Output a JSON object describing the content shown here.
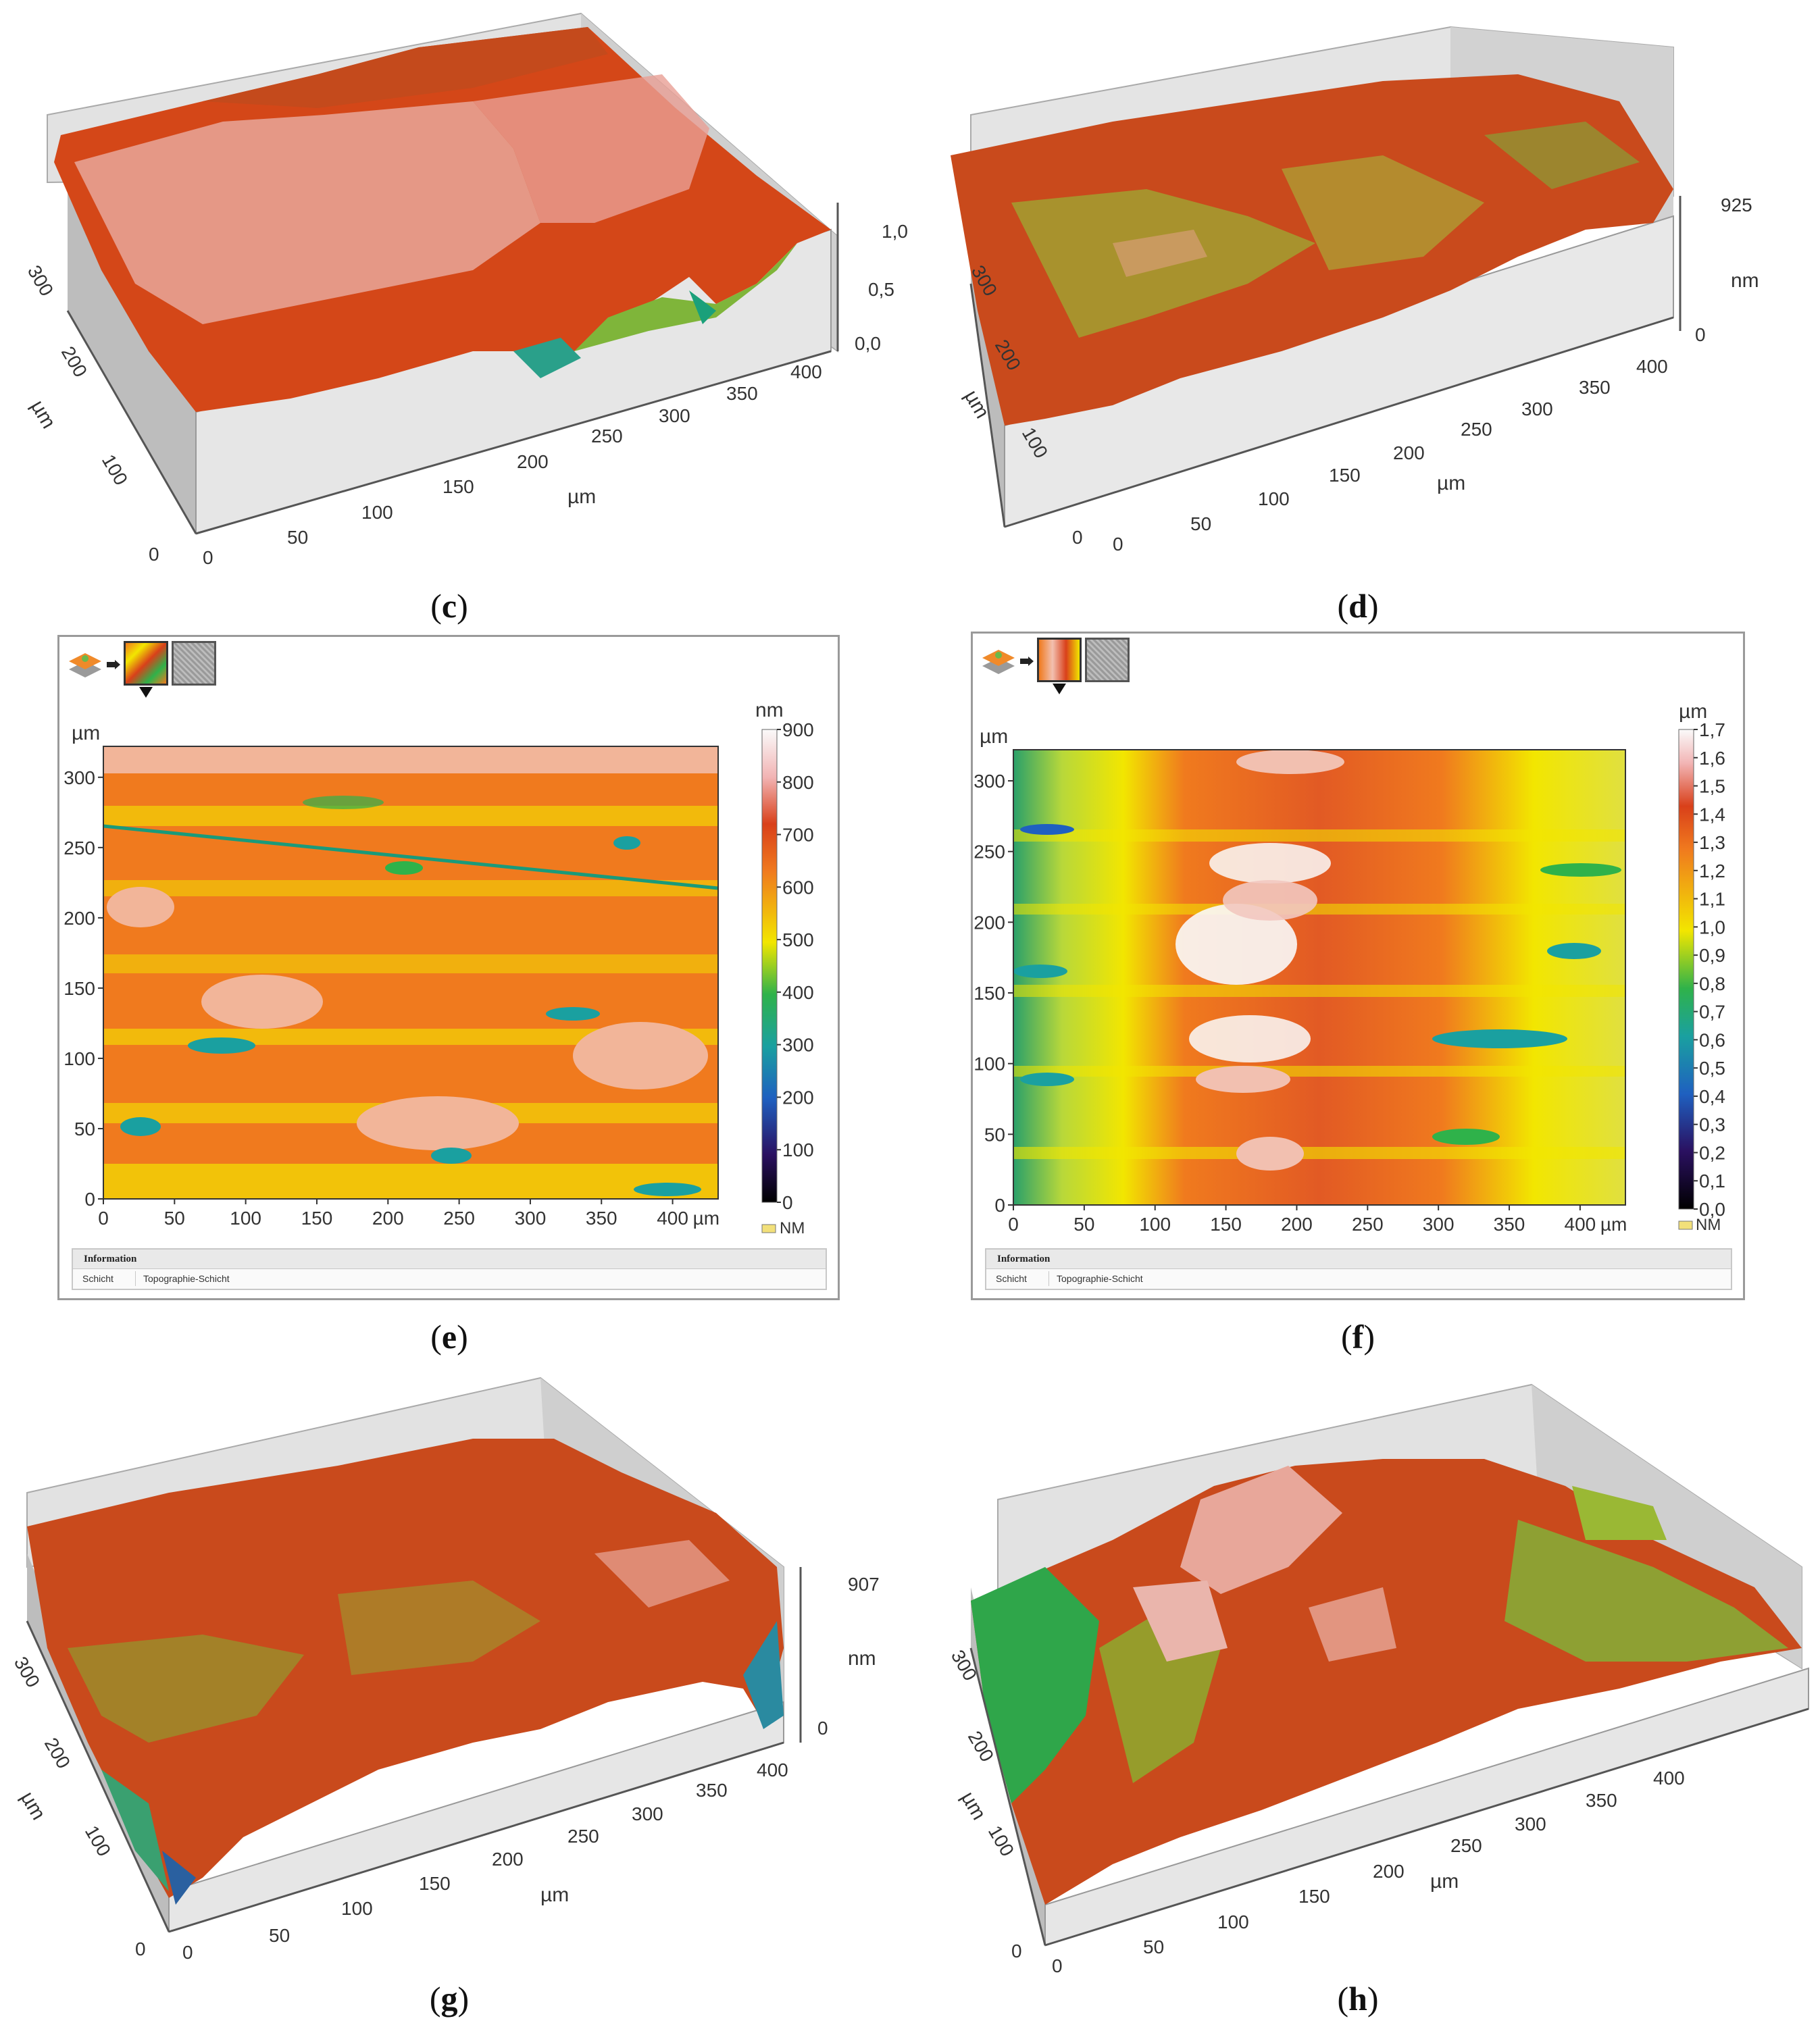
{
  "panels": {
    "c": {
      "caption": "c",
      "x_ticks": [
        "0",
        "50",
        "100",
        "150",
        "200",
        "250",
        "300",
        "350",
        "400"
      ],
      "x_unit": "µm",
      "y_ticks": [
        "0",
        "100",
        "200",
        "300"
      ],
      "y_unit": "µm",
      "z_ticks": [
        "1,0",
        "0,5",
        "0,0"
      ]
    },
    "d": {
      "caption": "d",
      "x_ticks": [
        "0",
        "50",
        "100",
        "150",
        "200",
        "250",
        "300",
        "350",
        "400"
      ],
      "x_unit": "µm",
      "y_ticks": [
        "0",
        "100",
        "200",
        "300"
      ],
      "y_unit": "µm",
      "z_ticks": [
        "925",
        "0"
      ],
      "z_unit": "nm"
    },
    "e": {
      "caption": "e",
      "y_unit": "µm",
      "y_ticks": [
        "0",
        "50",
        "100",
        "150",
        "200",
        "250",
        "300"
      ],
      "x_ticks": [
        "0",
        "50",
        "100",
        "150",
        "200",
        "250",
        "300",
        "350",
        "400"
      ],
      "x_unit": "µm",
      "colorbar_unit": "nm",
      "colorbar_ticks": [
        "900",
        "800",
        "700",
        "600",
        "500",
        "400",
        "300",
        "200",
        "100",
        "0"
      ],
      "nm_label": "NM",
      "info_header": "Information",
      "info_key": "Schicht",
      "info_value": "Topographie-Schicht"
    },
    "f": {
      "caption": "f",
      "y_unit": "µm",
      "y_ticks": [
        "0",
        "50",
        "100",
        "150",
        "200",
        "250",
        "300"
      ],
      "x_ticks": [
        "0",
        "50",
        "100",
        "150",
        "200",
        "250",
        "300",
        "350",
        "400"
      ],
      "x_unit": "µm",
      "colorbar_unit": "µm",
      "colorbar_ticks": [
        "1,7",
        "1,6",
        "1,5",
        "1,4",
        "1,3",
        "1,2",
        "1,1",
        "1,0",
        "0,9",
        "0,8",
        "0,7",
        "0,6",
        "0,5",
        "0,4",
        "0,3",
        "0,2",
        "0,1",
        "0,0"
      ],
      "nm_label": "NM",
      "info_header": "Information",
      "info_key": "Schicht",
      "info_value": "Topographie-Schicht"
    },
    "g": {
      "caption": "g",
      "x_ticks": [
        "0",
        "50",
        "100",
        "150",
        "200",
        "250",
        "300",
        "350",
        "400"
      ],
      "x_unit": "µm",
      "y_ticks": [
        "0",
        "100",
        "200",
        "300"
      ],
      "y_unit": "µm",
      "z_ticks": [
        "907",
        "0"
      ],
      "z_unit": "nm"
    },
    "h": {
      "caption": "h",
      "x_ticks": [
        "0",
        "50",
        "100",
        "150",
        "200",
        "250",
        "300",
        "350",
        "400"
      ],
      "x_unit": "µm",
      "y_ticks": [
        "0",
        "100",
        "200",
        "300"
      ],
      "y_unit": "µm"
    }
  },
  "colors": {
    "low": "#2a1060",
    "teal": "#1aa0a0",
    "green": "#2fb24a",
    "yellow": "#f2e600",
    "orange": "#f07a1e",
    "red": "#d9401a",
    "pink": "#f2b5b5",
    "white": "#fafafa",
    "wall": "#d8d8d8"
  }
}
